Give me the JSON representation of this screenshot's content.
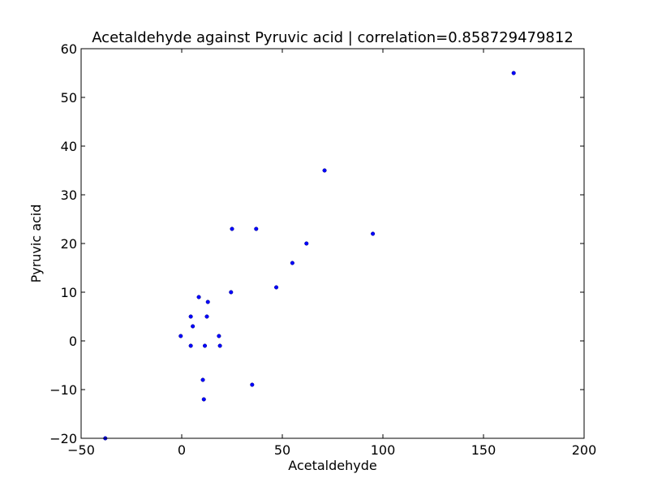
{
  "chart_data": {
    "type": "scatter",
    "title": "Acetaldehyde against Pyruvic acid | correlation=0.858729479812",
    "xlabel": "Acetaldehyde",
    "ylabel": "Pyruvic acid",
    "xlim": [
      -50,
      200
    ],
    "ylim": [
      -20,
      60
    ],
    "xticks": [
      -50,
      0,
      50,
      100,
      150,
      200
    ],
    "yticks": [
      -20,
      -10,
      0,
      10,
      20,
      30,
      40,
      50,
      60
    ],
    "grid": false,
    "legend": "none",
    "marker_color": "#0000ff",
    "points": [
      {
        "x": -38,
        "y": -20
      },
      {
        "x": -0.5,
        "y": 1
      },
      {
        "x": 4.5,
        "y": 5
      },
      {
        "x": 4.5,
        "y": -1
      },
      {
        "x": 5.5,
        "y": 3
      },
      {
        "x": 8.5,
        "y": 9
      },
      {
        "x": 10.5,
        "y": -8
      },
      {
        "x": 11.5,
        "y": -1
      },
      {
        "x": 11,
        "y": -12
      },
      {
        "x": 12.5,
        "y": 5
      },
      {
        "x": 13,
        "y": 8
      },
      {
        "x": 18.5,
        "y": 1
      },
      {
        "x": 19,
        "y": -1
      },
      {
        "x": 24.5,
        "y": 10
      },
      {
        "x": 25,
        "y": 23
      },
      {
        "x": 35,
        "y": -9
      },
      {
        "x": 37,
        "y": 23
      },
      {
        "x": 47,
        "y": 11
      },
      {
        "x": 55,
        "y": 16
      },
      {
        "x": 62,
        "y": 20
      },
      {
        "x": 71,
        "y": 35
      },
      {
        "x": 95,
        "y": 22
      },
      {
        "x": 165,
        "y": 55
      }
    ]
  }
}
